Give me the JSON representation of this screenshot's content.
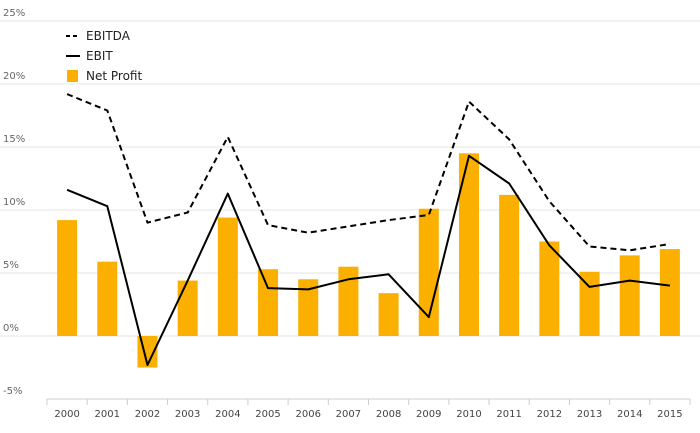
{
  "chart_data": {
    "type": "bar",
    "title": "",
    "xlabel": "",
    "ylabel": "",
    "ylim": [
      -5,
      25
    ],
    "yticks": [
      -5,
      0,
      5,
      10,
      15,
      20,
      25
    ],
    "ytick_labels": [
      "-5%",
      "0%",
      "5%",
      "10%",
      "15%",
      "20%",
      "25%"
    ],
    "grid": true,
    "legend_position": "top-left",
    "categories": [
      "2000",
      "2001",
      "2002",
      "2003",
      "2004",
      "2005",
      "2006",
      "2007",
      "2008",
      "2009",
      "2010",
      "2011",
      "2012",
      "2013",
      "2014",
      "2015"
    ],
    "series": [
      {
        "name": "EBITDA",
        "kind": "line",
        "style": "dashed",
        "color": "#000000",
        "values": [
          19.2,
          17.9,
          9.0,
          9.8,
          15.8,
          8.8,
          8.2,
          8.7,
          9.2,
          9.6,
          18.6,
          15.6,
          10.7,
          7.1,
          6.8,
          7.3
        ]
      },
      {
        "name": "EBIT",
        "kind": "line",
        "style": "solid",
        "color": "#000000",
        "values": [
          11.6,
          10.3,
          -2.3,
          4.4,
          11.3,
          3.8,
          3.7,
          4.5,
          4.9,
          1.5,
          14.3,
          12.1,
          7.2,
          3.9,
          4.4,
          4.0
        ]
      },
      {
        "name": "Net Profit",
        "kind": "bar",
        "color": "#FBB000",
        "values": [
          9.2,
          5.9,
          -2.5,
          4.4,
          9.4,
          5.3,
          4.5,
          5.5,
          3.4,
          10.1,
          14.5,
          11.2,
          7.5,
          5.1,
          6.4,
          6.9
        ]
      }
    ]
  }
}
